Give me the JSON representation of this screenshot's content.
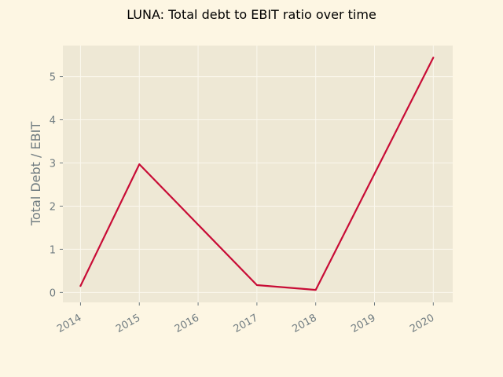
{
  "chart_data": {
    "type": "line",
    "title": "LUNA: Total debt to EBIT ratio over time",
    "xlabel": "",
    "ylabel": "Total Debt / EBIT",
    "x": [
      "2014",
      "2015",
      "2016",
      "2017",
      "2018",
      "2019",
      "2020"
    ],
    "x_ticks": [
      "2014",
      "2015",
      "2016",
      "2017",
      "2018",
      "2019",
      "2020"
    ],
    "y_ticks": [
      "0",
      "1",
      "2",
      "3",
      "4",
      "5"
    ],
    "points": [
      {
        "x": 2014.0,
        "y": 0.15
      },
      {
        "x": 2015.0,
        "y": 2.97
      },
      {
        "x": 2017.0,
        "y": 0.17
      },
      {
        "x": 2018.0,
        "y": 0.06
      },
      {
        "x": 2020.0,
        "y": 5.44
      }
    ],
    "xlim": [
      2013.7,
      2020.33
    ],
    "ylim": [
      -0.23,
      5.72
    ],
    "grid": true,
    "legend": "none",
    "colors": {
      "figure_bg": "#fdf6e3",
      "plot_bg": "#eee8d5",
      "grid": "#fbf8ee",
      "line": "#c80c36",
      "tick_text": "#6f7b80",
      "title_text": "#000000"
    }
  }
}
